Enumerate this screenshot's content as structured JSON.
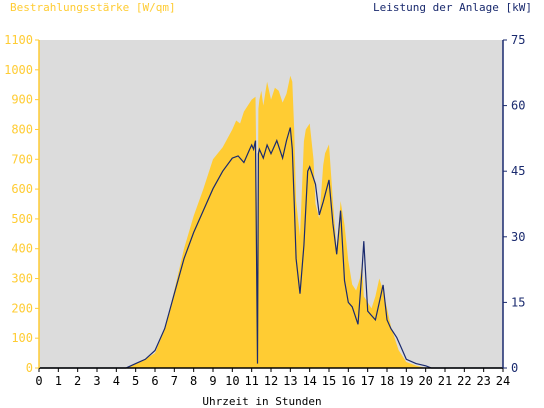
{
  "chart_data": {
    "type": "area",
    "left_axis_title": "Bestrahlungsstärke [W/qm]",
    "right_axis_title": "Leistung der Anlage [kW]",
    "xlabel": "Uhrzeit in Stunden",
    "xlim": [
      0,
      24
    ],
    "ylim_left": [
      0,
      1100
    ],
    "ylim_right": [
      0,
      75
    ],
    "x_ticks": [
      "0",
      "1",
      "2",
      "3",
      "4",
      "5",
      "6",
      "7",
      "8",
      "9",
      "10",
      "11",
      "12",
      "13",
      "14",
      "15",
      "16",
      "17",
      "18",
      "19",
      "20",
      "21",
      "22",
      "23",
      "24"
    ],
    "left_ticks": [
      "0",
      "100",
      "200",
      "300",
      "400",
      "500",
      "600",
      "700",
      "800",
      "900",
      "1000",
      "1100"
    ],
    "right_ticks": [
      "0",
      "15",
      "30",
      "45",
      "60",
      "75"
    ],
    "colors": {
      "plot_background": "#dcdcdc",
      "irradiance_fill": "#ffcc33",
      "power_line": "#1a2a6e",
      "left_axis_text": "#ffcc33",
      "right_axis_text": "#1a2a6e",
      "x_axis_text": "#000000"
    },
    "series": [
      {
        "axis": "left",
        "style": "area",
        "x": [
          0,
          4.5,
          5,
          5.5,
          6,
          6.5,
          7,
          7.5,
          8,
          8.5,
          9,
          9.5,
          10,
          10.2,
          10.4,
          10.6,
          10.8,
          11,
          11.2,
          11.3,
          11.35,
          11.4,
          11.5,
          11.6,
          11.8,
          12,
          12.2,
          12.4,
          12.6,
          12.8,
          13,
          13.1,
          13.2,
          13.3,
          13.5,
          13.7,
          13.8,
          14,
          14.2,
          14.3,
          14.5,
          14.7,
          14.8,
          15,
          15.2,
          15.4,
          15.6,
          15.8,
          16,
          16.2,
          16.4,
          16.6,
          16.7,
          16.8,
          17,
          17.2,
          17.4,
          17.6,
          17.8,
          18,
          18.2,
          18.4,
          18.6,
          18.8,
          19,
          19.5,
          20,
          20.3,
          24
        ],
        "values": [
          0,
          0,
          15,
          30,
          50,
          130,
          260,
          400,
          510,
          600,
          700,
          740,
          800,
          830,
          820,
          860,
          880,
          900,
          910,
          360,
          870,
          900,
          930,
          880,
          960,
          900,
          940,
          930,
          890,
          920,
          980,
          960,
          800,
          560,
          440,
          760,
          800,
          820,
          700,
          550,
          500,
          680,
          720,
          750,
          560,
          400,
          560,
          480,
          360,
          280,
          260,
          300,
          350,
          240,
          220,
          200,
          240,
          300,
          260,
          200,
          140,
          100,
          60,
          40,
          20,
          8,
          0,
          0,
          0
        ]
      },
      {
        "axis": "right",
        "style": "line",
        "x": [
          0,
          4.5,
          5,
          5.5,
          6,
          6.5,
          7,
          7.5,
          8,
          8.5,
          9,
          9.5,
          10,
          10.3,
          10.6,
          10.9,
          11,
          11.1,
          11.2,
          11.3,
          11.35,
          11.4,
          11.6,
          11.8,
          12,
          12.3,
          12.6,
          12.8,
          13,
          13.1,
          13.2,
          13.3,
          13.5,
          13.7,
          13.9,
          14,
          14.3,
          14.5,
          14.7,
          15,
          15.2,
          15.4,
          15.6,
          15.8,
          16,
          16.2,
          16.5,
          16.7,
          16.8,
          17,
          17.2,
          17.4,
          17.6,
          17.8,
          18,
          18.2,
          18.5,
          18.8,
          19,
          19.5,
          20,
          20.3,
          24
        ],
        "values": [
          0,
          0,
          1,
          2,
          4,
          9,
          17,
          25,
          31,
          36,
          41,
          45,
          48,
          48.5,
          47,
          50,
          51,
          50,
          52,
          1,
          49,
          50,
          48,
          51,
          49,
          52,
          48,
          52,
          55,
          50,
          38,
          25,
          17,
          28,
          45,
          46,
          42,
          35,
          38,
          43,
          33,
          26,
          36,
          20,
          15,
          14,
          10,
          22,
          29,
          13,
          12,
          11,
          15,
          19,
          11,
          9,
          7,
          4,
          2,
          1,
          0.5,
          0,
          0
        ]
      }
    ]
  }
}
